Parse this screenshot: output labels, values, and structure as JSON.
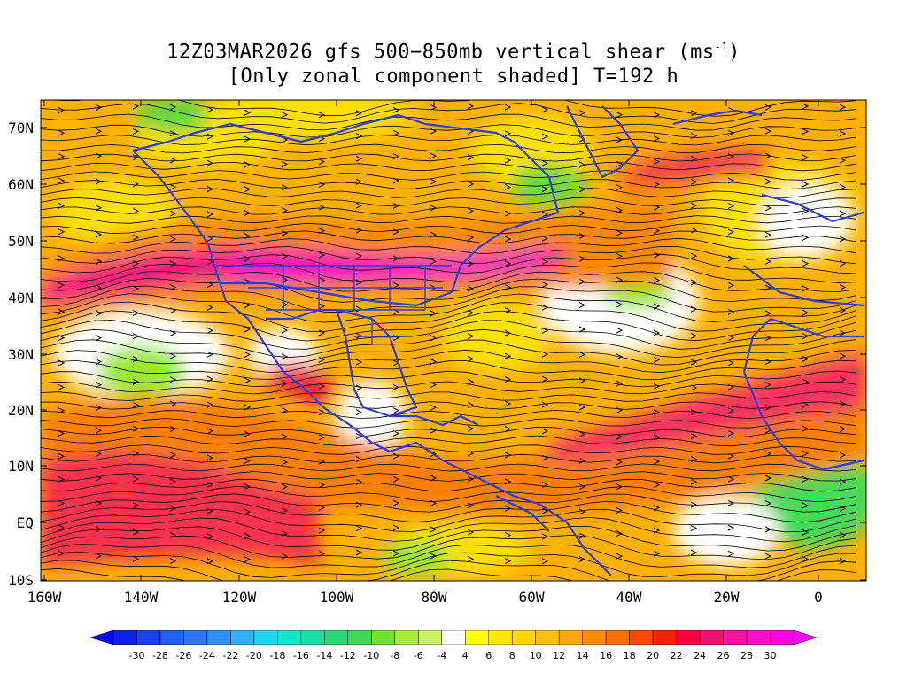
{
  "title": {
    "line1_before_sup": "12Z03MAR2026 gfs 500−850mb vertical shear (ms",
    "superscript": "-1",
    "line1_after_sup": ")",
    "line2": "[Only zonal component shaded] T=192 h"
  },
  "map": {
    "lat_labels": [
      "70N",
      "60N",
      "50N",
      "40N",
      "30N",
      "20N",
      "10N",
      "EQ",
      "10S"
    ],
    "lon_labels": [
      "160W",
      "140W",
      "120W",
      "100W",
      "80W",
      "60W",
      "40W",
      "20W",
      "0"
    ],
    "coastline_color": "#2a3ee0",
    "vector_color": "#000000"
  },
  "colorbar": {
    "labels": [
      "-30",
      "-28",
      "-26",
      "-24",
      "-22",
      "-20",
      "-18",
      "-16",
      "-14",
      "-12",
      "-10",
      "-8",
      "-6",
      "-4",
      "4",
      "6",
      "8",
      "10",
      "12",
      "14",
      "16",
      "18",
      "20",
      "22",
      "24",
      "26",
      "28",
      "30"
    ],
    "colors": [
      "#0a1fe8",
      "#1a40ef",
      "#2260f2",
      "#2a78f5",
      "#2f90f8",
      "#2fb2f8",
      "#1fd8f0",
      "#10e8c8",
      "#18e0a0",
      "#2ad87a",
      "#40d850",
      "#70e030",
      "#a8e838",
      "#c8f060",
      "#ffffff",
      "#ffff00",
      "#ffe800",
      "#ffd400",
      "#ffbe00",
      "#ffa600",
      "#ff8c00",
      "#ff6e00",
      "#ff4a00",
      "#ff1e00",
      "#ff0040",
      "#ff1070",
      "#ff10a0",
      "#ff10c8",
      "#ff00e0"
    ],
    "under_color": "#0000ff",
    "over_color": "#ff00ff"
  }
}
